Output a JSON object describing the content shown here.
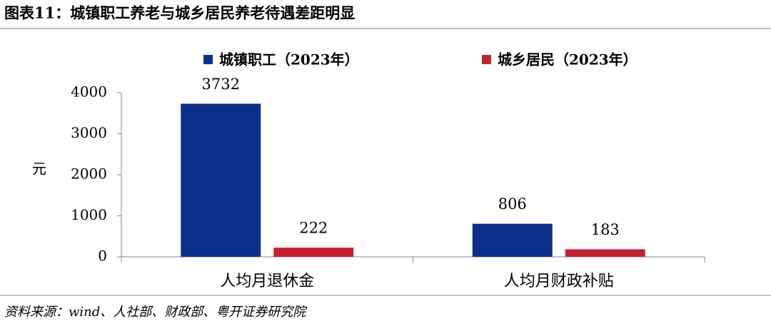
{
  "chart_data": {
    "type": "bar",
    "title": "图表11：城镇职工养老与城乡居民养老待遇差距明显",
    "source": "资料来源：wind、人社部、财政部、粤开证券研究院",
    "y_label": "元",
    "categories": [
      "人均月退休金",
      "人均月财政补贴"
    ],
    "series": [
      {
        "name": "城镇职工（2023年）",
        "color": "#0d2f8c",
        "values": [
          3732,
          806
        ]
      },
      {
        "name": "城乡居民（2023年）",
        "color": "#c8202f",
        "values": [
          222,
          183
        ]
      }
    ],
    "ylim": [
      0,
      4000
    ],
    "yticks": [
      0,
      1000,
      2000,
      3000,
      4000
    ]
  }
}
